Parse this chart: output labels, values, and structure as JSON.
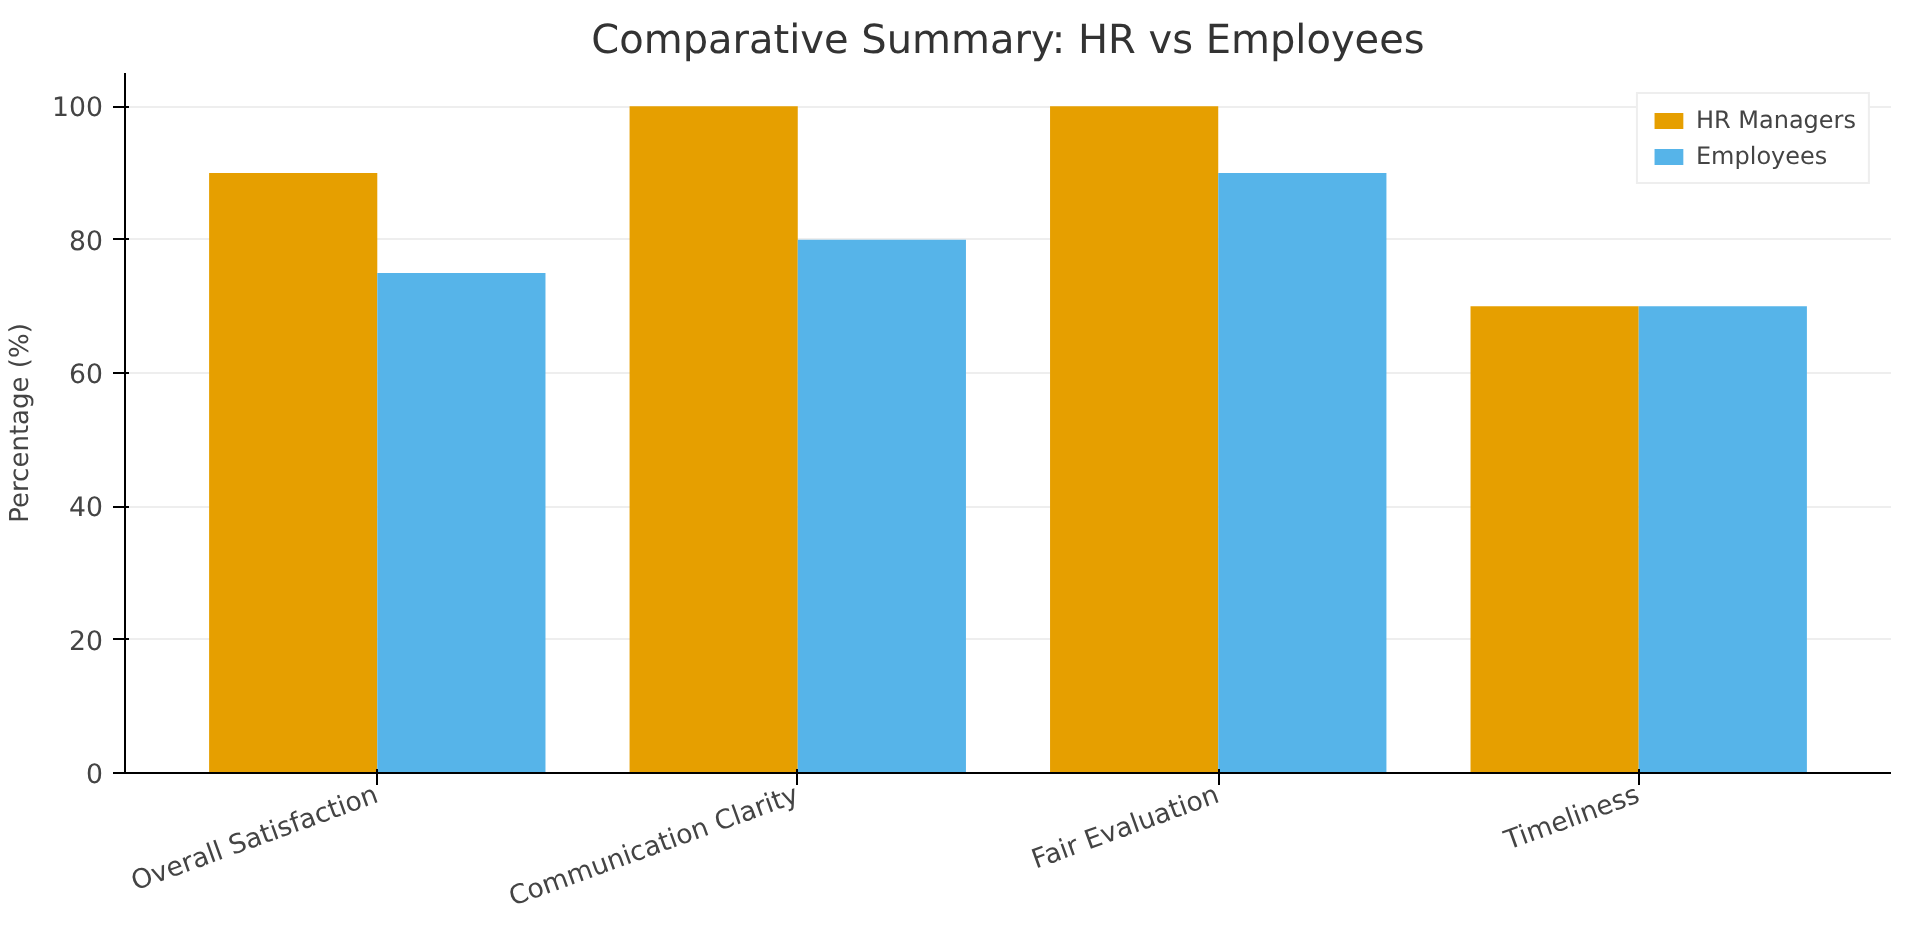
{
  "chart_data": {
    "type": "bar",
    "title": "Comparative Summary: HR vs Employees",
    "ylabel": "Percentage (%)",
    "categories": [
      "Overall Satisfaction",
      "Communication Clarity",
      "Fair Evaluation",
      "Timeliness"
    ],
    "series": [
      {
        "name": "HR Managers",
        "color": "#e69f00",
        "values": [
          90,
          100,
          100,
          70
        ]
      },
      {
        "name": "Employees",
        "color": "#56b4e9",
        "values": [
          75,
          80,
          90,
          70
        ]
      }
    ],
    "ylim": [
      0,
      105
    ],
    "yticks": [
      0,
      20,
      40,
      60,
      80,
      100
    ],
    "grid": "y",
    "legend": "top right"
  }
}
